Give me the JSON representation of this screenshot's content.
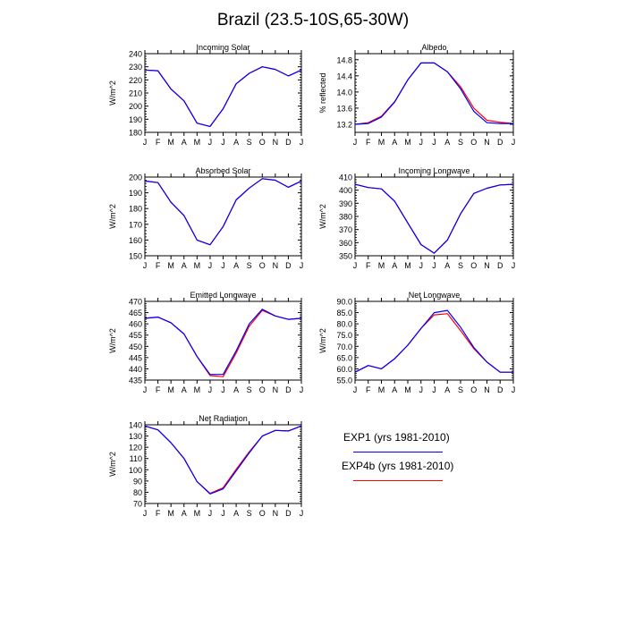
{
  "figure": {
    "title": "Brazil (23.5-10S,65-30W)"
  },
  "months": [
    "J",
    "F",
    "M",
    "A",
    "M",
    "J",
    "J",
    "A",
    "S",
    "O",
    "N",
    "D",
    "J"
  ],
  "colors": {
    "exp1": "#0000ff",
    "exp4b": "#ff0000",
    "axis": "#000000"
  },
  "legend": {
    "exp1": "EXP1 (yrs 1981-2010)",
    "exp4b": "EXP4b (yrs 1981-2010)"
  },
  "chart_data": [
    {
      "type": "line",
      "title": "Incoming Solar",
      "ylabel": "W/m^2",
      "ylim": [
        180,
        240
      ],
      "yticks": [
        180,
        190,
        200,
        210,
        220,
        230,
        240
      ],
      "ytick_labels": [
        "180",
        "190",
        "200",
        "210",
        "220",
        "230",
        "240"
      ],
      "categories": [
        "J",
        "F",
        "M",
        "A",
        "M",
        "J",
        "J",
        "A",
        "S",
        "O",
        "N",
        "D",
        "J"
      ],
      "series": [
        {
          "name": "EXP1 (yrs 1981-2010)",
          "values": [
            227.5,
            227,
            213,
            204,
            187,
            184.5,
            198,
            217,
            225,
            230,
            228,
            223,
            227.5
          ]
        },
        {
          "name": "EXP4b (yrs 1981-2010)",
          "values": [
            227.5,
            227,
            213,
            204,
            187,
            184.5,
            198,
            217,
            225,
            230,
            228,
            223,
            227.5
          ]
        }
      ]
    },
    {
      "type": "line",
      "title": "Albedo",
      "ylabel": "% reflected",
      "ylim": [
        13.0,
        14.95
      ],
      "yticks": [
        13.2,
        13.6,
        14.0,
        14.4,
        14.8
      ],
      "ytick_labels": [
        "13.2",
        "13.6",
        "14.0",
        "14.4",
        "14.8"
      ],
      "categories": [
        "J",
        "F",
        "M",
        "A",
        "M",
        "J",
        "J",
        "A",
        "S",
        "O",
        "N",
        "D",
        "J"
      ],
      "series": [
        {
          "name": "EXP1 (yrs 1981-2010)",
          "values": [
            13.2,
            13.22,
            13.38,
            13.75,
            14.3,
            14.72,
            14.72,
            14.5,
            14.08,
            13.52,
            13.24,
            13.22,
            13.22
          ]
        },
        {
          "name": "EXP4b (yrs 1981-2010)",
          "values": [
            13.2,
            13.24,
            13.4,
            13.76,
            14.3,
            14.72,
            14.72,
            14.5,
            14.13,
            13.6,
            13.3,
            13.25,
            13.22
          ]
        }
      ]
    },
    {
      "type": "line",
      "title": "Absorbed Solar",
      "ylabel": "W/m^2",
      "ylim": [
        150,
        200
      ],
      "yticks": [
        150,
        160,
        170,
        180,
        190,
        200
      ],
      "ytick_labels": [
        "150",
        "160",
        "170",
        "180",
        "190",
        "200"
      ],
      "categories": [
        "J",
        "F",
        "M",
        "A",
        "M",
        "J",
        "J",
        "A",
        "S",
        "O",
        "N",
        "D",
        "J"
      ],
      "series": [
        {
          "name": "EXP1 (yrs 1981-2010)",
          "values": [
            197.5,
            196.5,
            184,
            175.5,
            160,
            157,
            168.5,
            185.5,
            193,
            199,
            198,
            193.5,
            197.5
          ]
        },
        {
          "name": "EXP4b (yrs 1981-2010)",
          "values": [
            197.5,
            196.5,
            184,
            175.5,
            160,
            157,
            168.5,
            185.5,
            193,
            199,
            198,
            193.5,
            197.5
          ]
        }
      ]
    },
    {
      "type": "line",
      "title": "Incoming Longwave",
      "ylabel": "W/m^2",
      "ylim": [
        350,
        410
      ],
      "yticks": [
        350,
        360,
        370,
        380,
        390,
        400,
        410
      ],
      "ytick_labels": [
        "350",
        "360",
        "370",
        "380",
        "390",
        "400",
        "410"
      ],
      "categories": [
        "J",
        "F",
        "M",
        "A",
        "M",
        "J",
        "J",
        "A",
        "S",
        "O",
        "N",
        "D",
        "J"
      ],
      "series": [
        {
          "name": "EXP1 (yrs 1981-2010)",
          "values": [
            404.5,
            402,
            401,
            391.5,
            375,
            358.5,
            352,
            362,
            382,
            397.5,
            401.5,
            404,
            404.5
          ]
        },
        {
          "name": "EXP4b (yrs 1981-2010)",
          "values": [
            404.5,
            402,
            401,
            391.5,
            375,
            358.5,
            352,
            362,
            382,
            397.5,
            401.5,
            404,
            404.5
          ]
        }
      ]
    },
    {
      "type": "line",
      "title": "Emitted Longwave",
      "ylabel": "W/m^2",
      "ylim": [
        435,
        470
      ],
      "yticks": [
        435,
        440,
        445,
        450,
        455,
        460,
        465,
        470
      ],
      "ytick_labels": [
        "435",
        "440",
        "445",
        "450",
        "455",
        "460",
        "465",
        "470"
      ],
      "categories": [
        "J",
        "F",
        "M",
        "A",
        "M",
        "J",
        "J",
        "A",
        "S",
        "O",
        "N",
        "D",
        "J"
      ],
      "series": [
        {
          "name": "EXP1 (yrs 1981-2010)",
          "values": [
            462.5,
            463,
            460.5,
            455.5,
            445.5,
            437.5,
            437.5,
            448,
            460,
            466.5,
            463.5,
            462,
            462.5
          ]
        },
        {
          "name": "EXP4b (yrs 1981-2010)",
          "values": [
            462.5,
            463,
            460.5,
            455.5,
            445.5,
            437,
            436.5,
            447,
            459,
            466,
            463.5,
            462,
            462.5
          ]
        }
      ]
    },
    {
      "type": "line",
      "title": "Net Longwave",
      "ylabel": "W/m^2",
      "ylim": [
        55,
        90
      ],
      "yticks": [
        55,
        60,
        65,
        70,
        75,
        80,
        85,
        90
      ],
      "ytick_labels": [
        "55.0",
        "60.0",
        "65.0",
        "70.0",
        "75.0",
        "80.0",
        "85.0",
        "90.0"
      ],
      "categories": [
        "J",
        "F",
        "M",
        "A",
        "M",
        "J",
        "J",
        "A",
        "S",
        "O",
        "N",
        "D",
        "J"
      ],
      "series": [
        {
          "name": "EXP1 (yrs 1981-2010)",
          "values": [
            58.5,
            61.5,
            60,
            64.5,
            70.5,
            78,
            85,
            86,
            78.5,
            69.5,
            63,
            58.5,
            58.5
          ]
        },
        {
          "name": "EXP4b (yrs 1981-2010)",
          "values": [
            58.5,
            61.5,
            60,
            64.5,
            70.5,
            78,
            84,
            84.5,
            77,
            69,
            63,
            58.5,
            58.5
          ]
        }
      ]
    },
    {
      "type": "line",
      "title": "Net Radiation",
      "ylabel": "W/m^2",
      "ylim": [
        70,
        140
      ],
      "yticks": [
        70,
        80,
        90,
        100,
        110,
        120,
        130,
        140
      ],
      "ytick_labels": [
        "70",
        "80",
        "90",
        "100",
        "110",
        "120",
        "130",
        "140"
      ],
      "categories": [
        "J",
        "F",
        "M",
        "A",
        "M",
        "J",
        "J",
        "A",
        "S",
        "O",
        "N",
        "D",
        "J"
      ],
      "series": [
        {
          "name": "EXP1 (yrs 1981-2010)",
          "values": [
            139,
            135.5,
            124,
            110,
            89.5,
            78.5,
            83,
            99,
            115,
            130,
            135,
            134.5,
            139
          ]
        },
        {
          "name": "EXP4b (yrs 1981-2010)",
          "values": [
            139,
            135.5,
            124,
            110,
            89.5,
            79,
            84,
            100.5,
            116,
            130,
            135,
            134.5,
            139
          ]
        }
      ]
    }
  ]
}
